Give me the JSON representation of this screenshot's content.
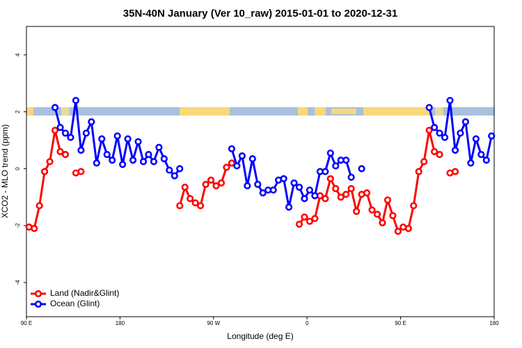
{
  "chart_data": {
    "type": "line",
    "title": "35N-40N January (Ver 10_raw)   2015-01-01 to 2020-12-31",
    "x_label": "Longitude (deg E)",
    "y_label": "XCO2 - MLO trend (ppm)",
    "x": [
      92.5,
      97.5,
      102.5,
      107.5,
      112.5,
      117.5,
      122.5,
      127.5,
      132.5,
      137.5,
      142.5,
      147.5,
      152.5,
      157.5,
      162.5,
      167.5,
      172.5,
      177.5,
      182.5,
      187.5,
      192.5,
      197.5,
      202.5,
      207.5,
      212.5,
      217.5,
      222.5,
      227.5,
      232.5,
      237.5,
      242.5,
      247.5,
      252.5,
      257.5,
      262.5,
      267.5,
      272.5,
      277.5,
      282.5,
      287.5,
      292.5,
      297.5,
      302.5,
      307.5,
      312.5,
      317.5,
      322.5,
      327.5,
      332.5,
      337.5,
      342.5,
      347.5,
      352.5,
      357.5,
      362.5,
      367.5,
      372.5,
      377.5,
      382.5,
      387.5,
      392.5,
      397.5,
      402.5,
      407.5,
      412.5,
      417.5,
      422.5,
      427.5,
      432.5,
      437.5,
      442.5,
      447.5,
      452.5,
      457.5,
      462.5,
      467.5,
      472.5,
      477.5,
      482.5,
      487.5,
      492.5,
      497.5,
      502.5,
      507.5,
      512.5,
      517.5,
      522.5,
      527.5,
      532.5,
      537.5
    ],
    "series": [
      {
        "name": "Land (Nadir&Glint)",
        "color": "#ff0000",
        "values": [
          -2.05,
          -2.1,
          -1.3,
          -0.1,
          0.25,
          1.35,
          0.6,
          0.5,
          null,
          -0.15,
          -0.1,
          null,
          null,
          null,
          null,
          null,
          null,
          null,
          null,
          null,
          null,
          null,
          null,
          null,
          null,
          null,
          null,
          null,
          null,
          -1.3,
          -0.65,
          -1.05,
          -1.2,
          -1.3,
          -0.55,
          -0.4,
          -0.6,
          -0.5,
          0.05,
          0.2,
          null,
          null,
          null,
          null,
          null,
          null,
          null,
          null,
          null,
          null,
          null,
          null,
          -1.95,
          -1.7,
          -1.85,
          -1.75,
          -0.95,
          -1.05,
          -0.35,
          -0.7,
          -1.0,
          -0.9,
          -0.7,
          -1.5,
          -0.9,
          -0.85,
          -1.45,
          -1.6,
          -1.9,
          -1.1,
          -1.65,
          -2.2,
          -2.05,
          -2.1,
          -1.3,
          -0.1,
          0.25,
          1.35,
          0.6,
          0.5,
          null,
          -0.15,
          -0.1,
          null,
          null,
          null,
          null,
          null,
          null,
          null
        ]
      },
      {
        "name": "Ocean (Glint)",
        "color": "#0000ff",
        "values": [
          null,
          null,
          null,
          null,
          null,
          2.15,
          1.45,
          1.25,
          1.1,
          2.4,
          0.65,
          1.25,
          1.65,
          0.2,
          1.05,
          0.5,
          0.3,
          1.15,
          0.15,
          1.05,
          0.3,
          0.95,
          0.25,
          0.5,
          0.25,
          0.75,
          0.35,
          -0.05,
          -0.25,
          0.0,
          null,
          null,
          null,
          null,
          null,
          null,
          null,
          null,
          null,
          0.7,
          0.1,
          0.45,
          -0.6,
          0.35,
          -0.55,
          -0.85,
          -0.75,
          -0.75,
          -0.4,
          -0.35,
          -1.35,
          -0.5,
          -0.65,
          -1.05,
          -0.75,
          -0.95,
          -0.1,
          -0.1,
          0.55,
          0.1,
          0.3,
          0.3,
          -0.3,
          null,
          0.0,
          null,
          null,
          null,
          null,
          null,
          null,
          null,
          null,
          null,
          null,
          null,
          null,
          2.15,
          1.45,
          1.25,
          1.1,
          2.4,
          0.65,
          1.25,
          1.65,
          0.2,
          1.05,
          0.5,
          0.3,
          1.15
        ]
      }
    ],
    "xlim": [
      90,
      540
    ],
    "xticks": [
      {
        "value": 90,
        "label": "90 E"
      },
      180,
      {
        "value": 270,
        "label": "90 W"
      },
      {
        "value": 360,
        "label": "0"
      },
      {
        "value": 450,
        "label": "90 E"
      },
      {
        "value": 540,
        "label": "180"
      }
    ],
    "ylim": [
      -5.2,
      5
    ],
    "yticks": [
      -4,
      -2,
      0,
      2,
      4
    ],
    "legend": "bottom-left"
  }
}
